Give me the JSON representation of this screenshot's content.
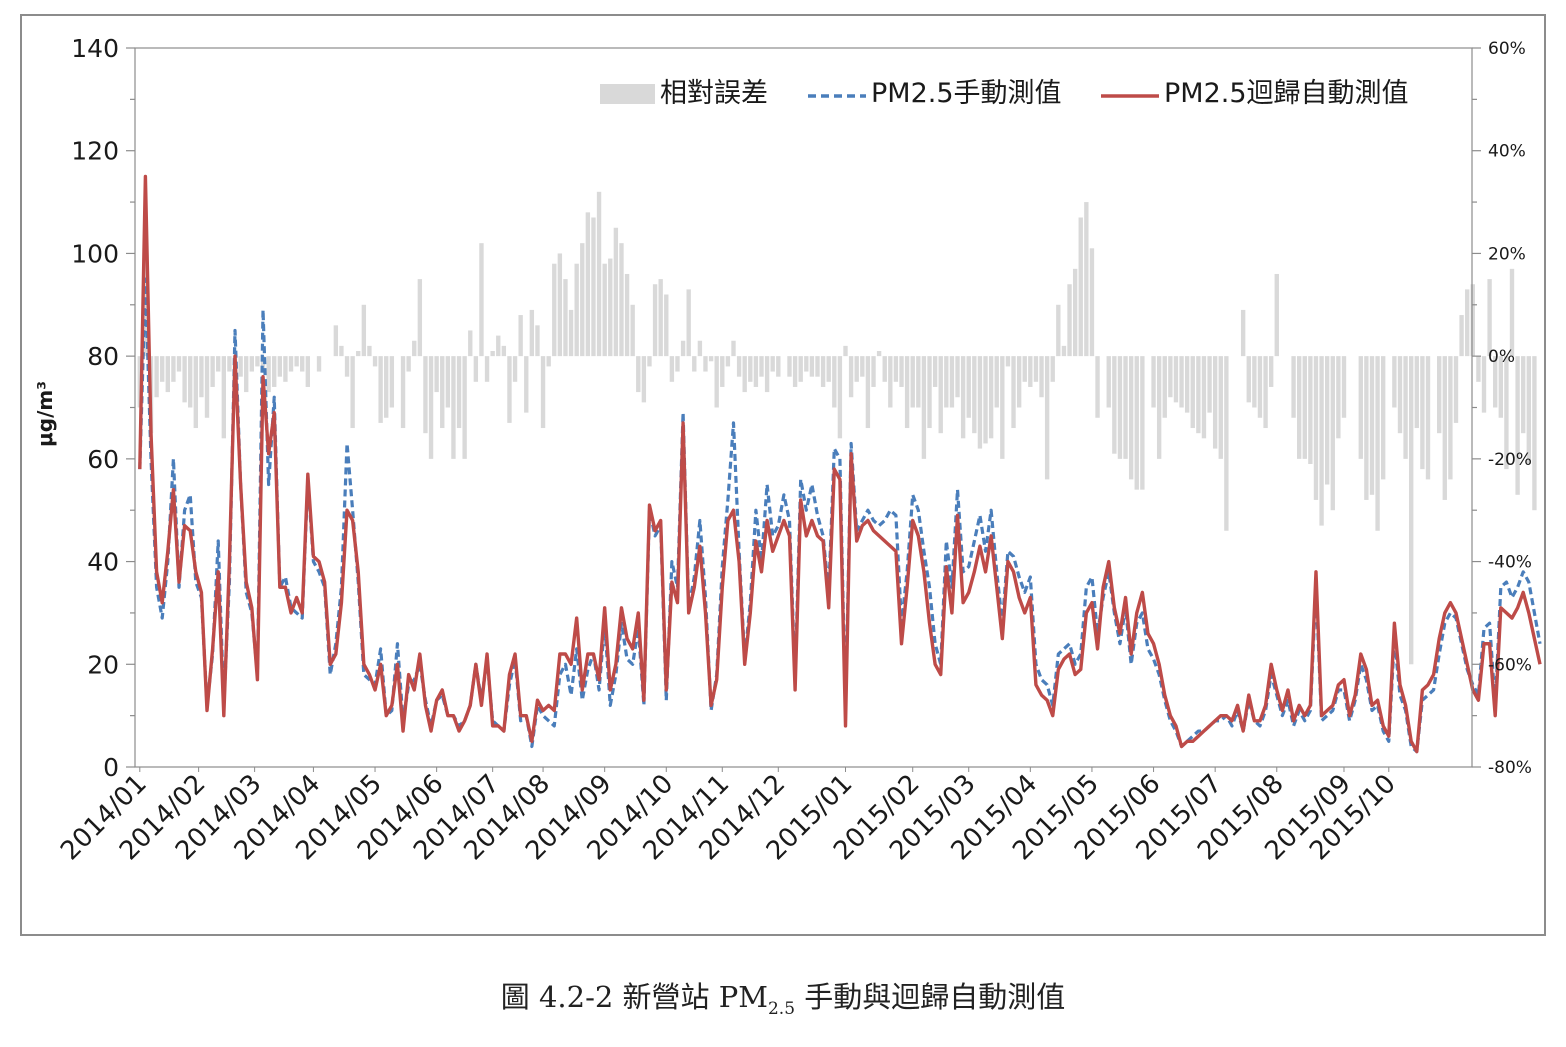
{
  "caption": {
    "prefix": "圖 4.2-2 新營站 PM",
    "sub": "2.5",
    "suffix": " 手動與迴歸自動測值"
  },
  "chart_data": {
    "type": "line",
    "ylabel": "μg/m³",
    "ylim": [
      0,
      140
    ],
    "y_ticks": [
      "0",
      "20",
      "40",
      "60",
      "80",
      "100",
      "120",
      "140"
    ],
    "y2lim": [
      -80,
      60
    ],
    "y2_ticks": [
      "-80%",
      "-60%",
      "-40%",
      "-20%",
      "0%",
      "20%",
      "40%",
      "60%"
    ],
    "x_tick_labels": [
      "2014/01",
      "2014/02",
      "2014/03",
      "2014/04",
      "2014/05",
      "2014/06",
      "2014/07",
      "2014/08",
      "2014/09",
      "2014/10",
      "2014/11",
      "2014/12",
      "2015/01",
      "2015/02",
      "2015/03",
      "2015/04",
      "2015/05",
      "2015/06",
      "2015/07",
      "2015/08",
      "2015/09",
      "2015/10"
    ],
    "x_tick_positions": [
      0,
      10.5,
      20.5,
      31,
      42,
      53,
      63,
      72,
      83,
      94,
      104,
      114,
      126,
      138,
      148,
      159,
      170,
      181,
      192,
      203,
      215,
      223
    ],
    "x_count": 238,
    "legend": [
      "相對誤差",
      "PM2.5手動測值",
      "PM2.5迴歸自動測值"
    ],
    "colors": {
      "bar": "#d9d9d9",
      "manual": "#4a7ebb",
      "auto": "#be4b48"
    },
    "series": [
      {
        "name": "PM2.5迴歸自動測值",
        "axis": "left",
        "values": [
          58,
          115,
          65,
          38,
          32,
          42,
          54,
          36,
          47,
          46,
          38,
          34,
          11,
          23,
          38,
          10,
          40,
          80,
          55,
          36,
          31,
          17,
          76,
          61,
          69,
          35,
          35,
          30,
          33,
          30,
          57,
          41,
          40,
          36,
          20,
          22,
          32,
          50,
          48,
          38,
          20,
          18,
          15,
          20,
          10,
          12,
          20,
          7,
          18,
          15,
          22,
          12,
          7,
          13,
          15,
          10,
          10,
          7,
          9,
          12,
          20,
          12,
          22,
          8,
          8,
          7,
          18,
          22,
          10,
          10,
          5,
          13,
          11,
          12,
          11,
          22,
          22,
          20,
          29,
          15,
          22,
          22,
          17,
          31,
          15,
          20,
          31,
          25,
          23,
          30,
          13,
          51,
          46,
          48,
          15,
          36,
          32,
          67,
          30,
          35,
          43,
          30,
          12,
          17,
          35,
          48,
          50,
          40,
          20,
          30,
          44,
          38,
          48,
          42,
          45,
          48,
          45,
          15,
          52,
          45,
          48,
          45,
          44,
          31,
          58,
          56,
          8,
          61,
          44,
          47,
          48,
          46,
          45,
          44,
          43,
          42,
          24,
          35,
          48,
          45,
          38,
          28,
          20,
          18,
          39,
          30,
          49,
          32,
          34,
          38,
          43,
          38,
          45,
          35,
          25,
          40,
          38,
          33,
          30,
          33,
          16,
          14,
          13,
          10,
          19,
          21,
          22,
          18,
          19,
          30,
          32,
          23,
          35,
          40,
          31,
          26,
          33,
          22,
          30,
          34,
          26,
          24,
          20,
          14,
          10,
          8,
          4,
          5,
          5,
          6,
          7,
          8,
          9,
          10,
          10,
          9,
          12,
          7,
          14,
          9,
          9,
          12,
          20,
          15,
          11,
          15,
          9,
          12,
          10,
          12,
          38,
          10,
          11,
          12,
          16,
          17,
          10,
          14,
          22,
          19,
          12,
          13,
          8,
          6,
          28,
          16,
          12,
          5,
          3,
          15,
          16,
          18,
          25,
          30,
          32,
          30,
          25,
          20,
          15,
          13,
          24,
          24,
          10,
          31,
          30,
          29,
          31,
          34,
          30,
          25,
          20
        ],
        "dashed": false
      },
      {
        "name": "PM2.5手動測值",
        "axis": "left",
        "values": [
          58,
          95,
          60,
          35,
          29,
          40,
          60,
          35,
          50,
          53,
          36,
          33,
          12,
          22,
          44,
          12,
          36,
          85,
          55,
          34,
          30,
          18,
          89,
          55,
          72,
          35,
          37,
          31,
          30,
          29,
          56,
          40,
          38,
          35,
          18,
          24,
          35,
          63,
          50,
          36,
          18,
          17,
          16,
          23,
          10,
          11,
          24,
          9,
          16,
          17,
          20,
          13,
          8,
          13,
          14,
          10,
          10,
          8,
          9,
          12,
          20,
          13,
          21,
          9,
          8,
          7,
          16,
          21,
          9,
          10,
          4,
          12,
          10,
          9,
          8,
          18,
          20,
          14,
          23,
          13,
          19,
          22,
          15,
          28,
          12,
          18,
          28,
          21,
          20,
          27,
          12,
          50,
          45,
          47,
          13,
          40,
          35,
          69,
          31,
          37,
          48,
          33,
          11,
          18,
          39,
          52,
          67,
          42,
          21,
          32,
          50,
          40,
          55,
          45,
          47,
          53,
          48,
          17,
          56,
          50,
          55,
          49,
          45,
          34,
          62,
          60,
          11,
          63,
          46,
          48,
          50,
          48,
          47,
          48,
          50,
          49,
          28,
          38,
          53,
          50,
          42,
          35,
          24,
          20,
          44,
          35,
          54,
          38,
          39,
          44,
          49,
          42,
          50,
          38,
          28,
          42,
          41,
          37,
          34,
          37,
          20,
          17,
          16,
          12,
          22,
          23,
          24,
          20,
          22,
          35,
          37,
          26,
          33,
          38,
          30,
          24,
          31,
          20,
          28,
          30,
          23,
          21,
          18,
          13,
          9,
          7,
          4,
          5,
          6,
          7,
          7,
          8,
          9,
          9,
          10,
          8,
          11,
          7,
          13,
          9,
          8,
          11,
          18,
          14,
          10,
          13,
          8,
          11,
          9,
          11,
          35,
          9,
          10,
          11,
          15,
          15,
          9,
          13,
          20,
          17,
          11,
          12,
          7,
          5,
          25,
          14,
          11,
          4,
          3,
          13,
          14,
          15,
          22,
          28,
          30,
          29,
          24,
          19,
          16,
          14,
          27,
          28,
          12,
          35,
          36,
          33,
          35,
          38,
          36,
          30,
          24
        ],
        "dashed": true
      },
      {
        "name": "相對誤差",
        "axis": "right",
        "type": "bar",
        "values": [
          -10,
          20,
          -15,
          -8,
          -5,
          -7,
          -5,
          -3,
          -9,
          -10,
          -14,
          -8,
          -12,
          -6,
          -3,
          -16,
          -3,
          -5,
          -4,
          -7,
          -3,
          -2,
          -3,
          -7,
          -6,
          -4,
          -5,
          -3,
          -2,
          -3,
          -6,
          0,
          -3,
          0,
          0,
          6,
          2,
          -4,
          -14,
          1,
          10,
          2,
          -2,
          -13,
          -12,
          -10,
          0,
          -14,
          -3,
          3,
          15,
          -15,
          -20,
          -7,
          -14,
          -10,
          -20,
          -14,
          -20,
          5,
          -5,
          22,
          -5,
          1,
          4,
          2,
          -13,
          -5,
          8,
          -11,
          9,
          6,
          -14,
          -2,
          18,
          20,
          15,
          9,
          18,
          22,
          28,
          27,
          32,
          18,
          19,
          25,
          22,
          16,
          10,
          -7,
          -9,
          -2,
          14,
          15,
          12,
          -5,
          -3,
          3,
          13,
          -3,
          3,
          -3,
          -1,
          -10,
          -6,
          -2,
          3,
          -4,
          -7,
          -5,
          -6,
          -4,
          -7,
          -3,
          -4,
          0,
          -4,
          -6,
          -5,
          -3,
          -4,
          -4,
          -6,
          -5,
          -10,
          -16,
          2,
          -8,
          -5,
          -4,
          -14,
          -6,
          1,
          -5,
          -10,
          -5,
          -6,
          -14,
          -10,
          -10,
          -20,
          -14,
          -6,
          -15,
          -10,
          -10,
          -8,
          -16,
          -12,
          -15,
          -18,
          -17,
          -16,
          -10,
          -20,
          -2,
          -14,
          -10,
          -5,
          -6,
          -5,
          -8,
          -24,
          -5,
          10,
          2,
          14,
          17,
          27,
          30,
          21,
          -12,
          0,
          -10,
          -19,
          -20,
          -20,
          -24,
          -26,
          -26,
          0,
          -10,
          -20,
          -12,
          -8,
          -9,
          -10,
          -11,
          -14,
          -15,
          -16,
          -11,
          -18,
          -20,
          -34,
          0,
          0,
          9,
          -9,
          -10,
          -12,
          -14,
          -6,
          16,
          0,
          0,
          -12,
          -20,
          -20,
          -21,
          -28,
          -33,
          -25,
          -30,
          -16,
          -12,
          0,
          0,
          -20,
          -28,
          -27,
          -34,
          -24,
          0,
          -10,
          -15,
          -20,
          -60,
          -14,
          -22,
          -24,
          0,
          -15,
          -28,
          -24,
          -13,
          8,
          13,
          14,
          -5,
          -11,
          15,
          -10,
          -12,
          -22,
          17,
          -27,
          -15,
          -21,
          -30
        ]
      }
    ]
  }
}
